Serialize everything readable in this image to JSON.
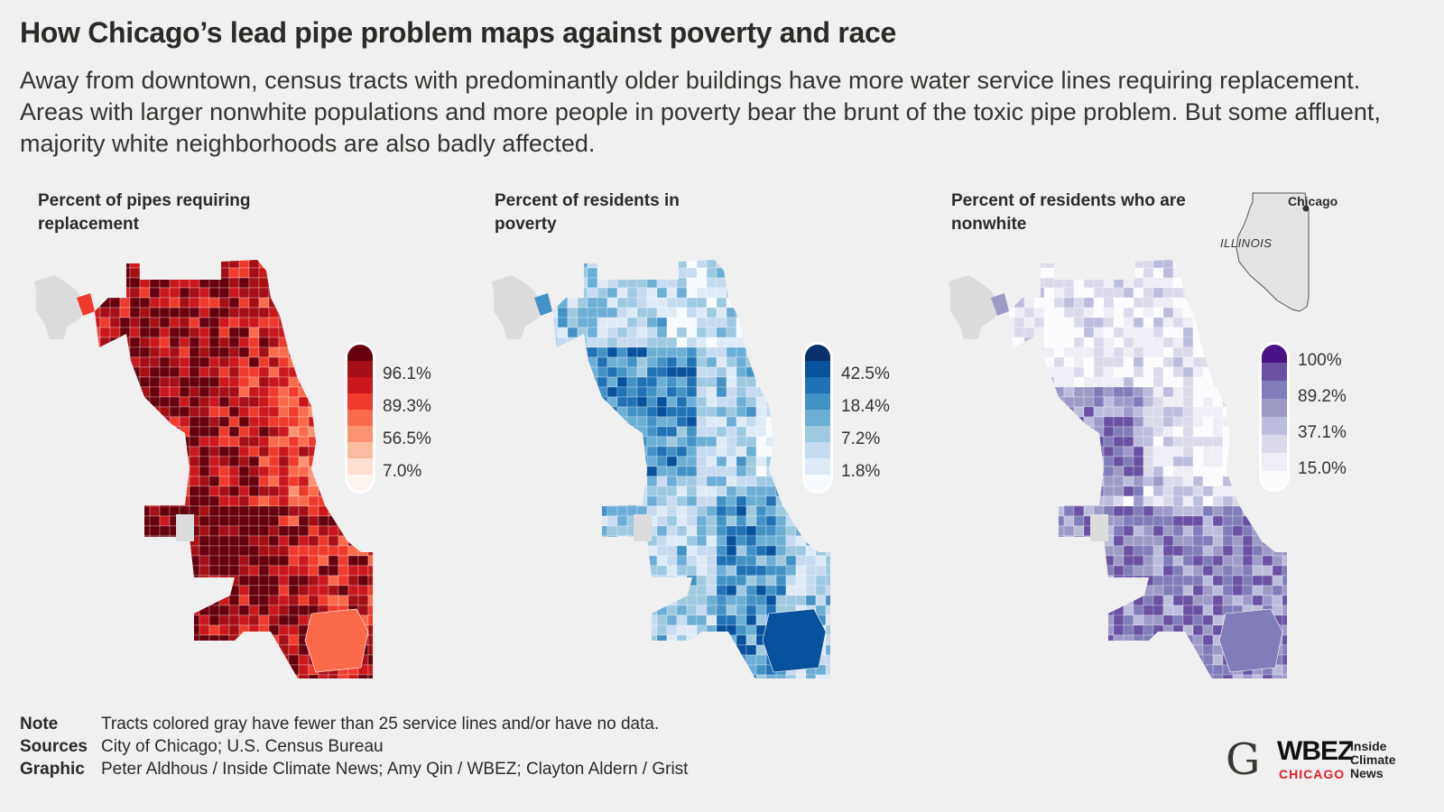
{
  "header": {
    "title": "How Chicago’s lead pipe problem maps against poverty and race",
    "subtitle": "Away from downtown, census tracts with predominantly older buildings have more water service lines requiring replacement. Areas with larger nonwhite populations and more people in poverty bear the brunt of the toxic pipe problem. But some affluent, majority white neighborhoods are also badly affected."
  },
  "maps": [
    {
      "title": "Percent of pipes requiring replacement",
      "legend_labels": [
        "96.1%",
        "89.3%",
        "56.5%",
        "7.0%"
      ],
      "colors": [
        "#67000d",
        "#a50f15",
        "#cb181d",
        "#ef3b2c",
        "#fb6a4a",
        "#fc9272",
        "#fcbba1",
        "#fee0d2",
        "#fff5f0"
      ]
    },
    {
      "title": "Percent of residents in poverty",
      "legend_labels": [
        "42.5%",
        "18.4%",
        "7.2%",
        "1.8%"
      ],
      "colors": [
        "#08306b",
        "#08519c",
        "#2171b5",
        "#4292c6",
        "#6baed6",
        "#9ecae1",
        "#c6dbef",
        "#deebf7",
        "#f7fbff"
      ]
    },
    {
      "title": "Percent of residents who are nonwhite",
      "legend_labels": [
        "100%",
        "89.2%",
        "37.1%",
        "15.0%"
      ],
      "colors": [
        "#4a1486",
        "#6a51a3",
        "#807dba",
        "#9e9ac8",
        "#bcbddc",
        "#dadaeb",
        "#efedf5",
        "#fcfbfd"
      ]
    }
  ],
  "locator": {
    "state": "ILLINOIS",
    "city": "Chicago"
  },
  "no_data_color": "#dcdcdc",
  "notes": [
    {
      "label": "Note",
      "text": "Tracts colored gray have fewer than 25 service lines and/or have no data."
    },
    {
      "label": "Sources",
      "text": "City of Chicago; U.S. Census Bureau"
    },
    {
      "label": "Graphic",
      "text": "Peter Aldhous / Inside Climate News; Amy Qin / WBEZ; Clayton Aldern / Grist"
    }
  ],
  "logos": {
    "grist": "G",
    "wbez": "WBEZ",
    "wbez_sub": "CHICAGO",
    "icn": "Inside Climate News"
  }
}
